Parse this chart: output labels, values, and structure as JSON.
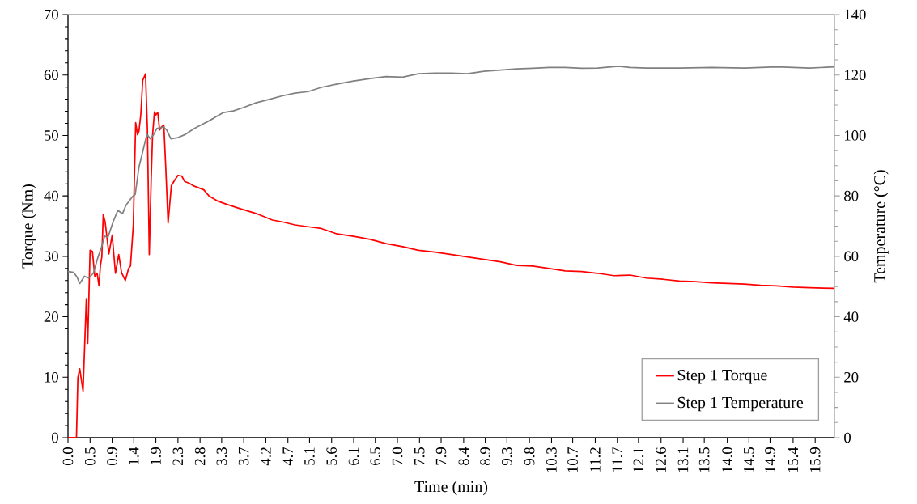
{
  "chart_data": {
    "type": "line",
    "xlabel": "Time (min)",
    "ylabel": "Torque (Nm)",
    "y2label": "Temperature (°C)",
    "legend": "bottom right",
    "xlim": [
      0,
      16.31
    ],
    "xticks": [
      {
        "value": 0,
        "label": "0.0"
      },
      {
        "value": 0.47,
        "label": "0.5"
      },
      {
        "value": 0.94,
        "label": "0.9"
      },
      {
        "value": 1.4,
        "label": "1.4"
      },
      {
        "value": 1.87,
        "label": "1.9"
      },
      {
        "value": 2.34,
        "label": "2.3"
      },
      {
        "value": 2.81,
        "label": "2.8"
      },
      {
        "value": 3.27,
        "label": "3.3"
      },
      {
        "value": 3.74,
        "label": "3.7"
      },
      {
        "value": 4.21,
        "label": "4.2"
      },
      {
        "value": 4.68,
        "label": "4.7"
      },
      {
        "value": 5.14,
        "label": "5.1"
      },
      {
        "value": 5.61,
        "label": "5.6"
      },
      {
        "value": 6.08,
        "label": "6.1"
      },
      {
        "value": 6.54,
        "label": "6.5"
      },
      {
        "value": 7.01,
        "label": "7.0"
      },
      {
        "value": 7.48,
        "label": "7.5"
      },
      {
        "value": 7.94,
        "label": "7.9"
      },
      {
        "value": 8.42,
        "label": "8.4"
      },
      {
        "value": 8.88,
        "label": "8.9"
      },
      {
        "value": 9.34,
        "label": "9.3"
      },
      {
        "value": 9.82,
        "label": "9.8"
      },
      {
        "value": 10.29,
        "label": "10.3"
      },
      {
        "value": 10.74,
        "label": "10.7"
      },
      {
        "value": 11.22,
        "label": "11.2"
      },
      {
        "value": 11.69,
        "label": "11.7"
      },
      {
        "value": 12.14,
        "label": "12.1"
      },
      {
        "value": 12.62,
        "label": "12.6"
      },
      {
        "value": 13.09,
        "label": "13.1"
      },
      {
        "value": 13.54,
        "label": "13.5"
      },
      {
        "value": 14.03,
        "label": "14.0"
      },
      {
        "value": 14.49,
        "label": "14.5"
      },
      {
        "value": 14.94,
        "label": "14.9"
      },
      {
        "value": 15.43,
        "label": "15.4"
      },
      {
        "value": 15.9,
        "label": "15.9"
      }
    ],
    "ylim": [
      0,
      70
    ],
    "yticks": [
      0,
      10,
      20,
      30,
      40,
      50,
      60,
      70
    ],
    "y2lim": [
      0,
      140
    ],
    "y2ticks": [
      0,
      20,
      40,
      60,
      80,
      100,
      120,
      140
    ],
    "series": [
      {
        "name": "Step 1 Torque",
        "color": "#ff0000",
        "x": [
          0,
          0.18,
          0.21,
          0.25,
          0.32,
          0.39,
          0.42,
          0.47,
          0.52,
          0.57,
          0.62,
          0.66,
          0.69,
          0.72,
          0.75,
          0.79,
          0.83,
          0.87,
          0.94,
          1.01,
          1.08,
          1.14,
          1.22,
          1.29,
          1.33,
          1.39,
          1.44,
          1.48,
          1.51,
          1.55,
          1.59,
          1.65,
          1.69,
          1.73,
          1.77,
          1.8,
          1.84,
          1.87,
          1.91,
          1.95,
          1.99,
          2.04,
          2.08,
          2.13,
          2.2,
          2.27,
          2.34,
          2.42,
          2.48,
          2.58,
          2.69,
          2.89,
          3.0,
          3.17,
          3.38,
          3.66,
          4.0,
          4.35,
          4.56,
          4.83,
          5.11,
          5.39,
          5.73,
          6.08,
          6.43,
          6.77,
          7.12,
          7.46,
          7.81,
          8.16,
          8.5,
          8.85,
          9.2,
          9.55,
          9.89,
          10.24,
          10.58,
          10.93,
          11.27,
          11.62,
          11.96,
          12.31,
          12.66,
          13.01,
          13.35,
          13.7,
          14.05,
          14.39,
          14.74,
          15.09,
          15.43,
          15.78,
          16.31
        ],
        "values": [
          0,
          0,
          9.9,
          11.4,
          7.7,
          23.0,
          15.6,
          31.0,
          30.8,
          26.7,
          27.2,
          25.1,
          28.5,
          29.9,
          36.9,
          35.7,
          33.1,
          30.4,
          33.5,
          27.2,
          30.3,
          27.3,
          26.0,
          28.0,
          28.4,
          35.2,
          52.1,
          50.1,
          50.7,
          53.5,
          59.1,
          60.2,
          51.1,
          30.3,
          42.6,
          50.1,
          53.9,
          53.4,
          53.8,
          50.9,
          51.4,
          51.7,
          44.8,
          35.5,
          41.7,
          42.6,
          43.4,
          43.3,
          42.4,
          42.1,
          41.6,
          41.0,
          40.0,
          39.2,
          38.6,
          37.9,
          37.1,
          36.0,
          35.7,
          35.2,
          34.9,
          34.6,
          33.7,
          33.3,
          32.8,
          32.1,
          31.6,
          31.0,
          30.7,
          30.3,
          29.9,
          29.5,
          29.1,
          28.5,
          28.4,
          28.0,
          27.6,
          27.5,
          27.2,
          26.8,
          26.9,
          26.4,
          26.2,
          25.9,
          25.8,
          25.6,
          25.5,
          25.4,
          25.2,
          25.1,
          24.9,
          24.8,
          24.7
        ]
      },
      {
        "name": "Step 1 Temperature",
        "color": "#808080",
        "axis": "y2",
        "x": [
          0,
          0.12,
          0.19,
          0.25,
          0.35,
          0.44,
          0.54,
          0.64,
          0.71,
          0.78,
          0.85,
          0.96,
          1.06,
          1.16,
          1.23,
          1.37,
          1.43,
          1.51,
          1.61,
          1.68,
          1.75,
          1.82,
          1.89,
          2.03,
          2.1,
          2.19,
          2.34,
          2.48,
          2.69,
          2.89,
          3.1,
          3.31,
          3.52,
          3.73,
          4.0,
          4.28,
          4.56,
          4.83,
          5.11,
          5.39,
          5.73,
          6.08,
          6.43,
          6.77,
          7.12,
          7.46,
          7.81,
          8.16,
          8.5,
          8.85,
          9.2,
          9.55,
          9.89,
          10.24,
          10.58,
          10.93,
          11.27,
          11.72,
          11.96,
          12.31,
          13.01,
          13.7,
          14.39,
          15.09,
          15.78,
          16.31
        ],
        "values": [
          55.0,
          54.7,
          53.2,
          51.0,
          53.4,
          52.8,
          54.4,
          59.8,
          62.9,
          66.7,
          66.3,
          71.4,
          75.2,
          74.1,
          76.8,
          79.7,
          80.5,
          89.5,
          95.9,
          100.4,
          98.9,
          100.2,
          102.3,
          102.8,
          101.8,
          98.9,
          99.3,
          100.2,
          102.3,
          103.9,
          105.7,
          107.6,
          108.1,
          109.2,
          110.8,
          111.9,
          113.1,
          114.0,
          114.5,
          115.9,
          117.0,
          118.0,
          118.8,
          119.5,
          119.3,
          120.4,
          120.6,
          120.6,
          120.4,
          121.2,
          121.6,
          122.0,
          122.2,
          122.5,
          122.5,
          122.2,
          122.3,
          122.9,
          122.5,
          122.3,
          122.3,
          122.5,
          122.3,
          122.7,
          122.3,
          122.7
        ]
      }
    ]
  }
}
